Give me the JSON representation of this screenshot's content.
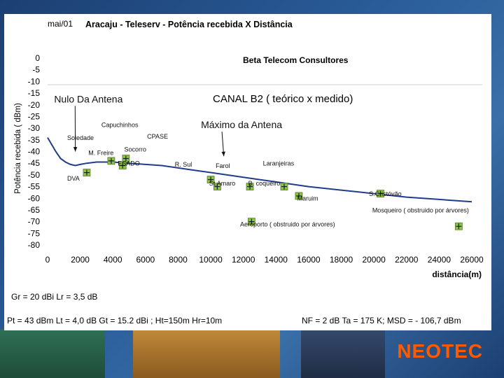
{
  "brand": "NEOTEC",
  "chart_data": {
    "type": "line",
    "date_label": "mai/01",
    "title": "Aracaju - Teleserv - Potência recebida X Distância",
    "subtitle": "Beta Telecom Consultores",
    "channel_label": "CANAL B2 ( teórico x medido)",
    "xlabel": "distância(m)",
    "ylabel": "Potência recebida ( dBm)",
    "xlim": [
      0,
      26000
    ],
    "ylim": [
      -80,
      0
    ],
    "x_ticks": [
      0,
      2000,
      4000,
      6000,
      8000,
      10000,
      12000,
      14000,
      16000,
      18000,
      20000,
      22000,
      24000,
      26000
    ],
    "y_ticks": [
      0,
      -5,
      -10,
      -15,
      -20,
      -25,
      -30,
      -35,
      -40,
      -45,
      -50,
      -55,
      -60,
      -65,
      -70,
      -75,
      -80
    ],
    "series": [
      {
        "name": "",
        "style": "line",
        "color": "#1f3d8a",
        "x": [
          0,
          500,
          800,
          1100,
          1400,
          1700,
          2000,
          2400,
          3000,
          4000,
          5000,
          6000,
          7000,
          8000,
          9000,
          10000,
          11000,
          12000,
          13000,
          14000,
          15000,
          16000,
          18000,
          20000,
          22000,
          24000,
          26000
        ],
        "y": [
          -34,
          -40,
          -43,
          -44.5,
          -45.5,
          -46,
          -45.5,
          -45,
          -44.5,
          -44.5,
          -45,
          -45.5,
          -46,
          -47,
          -48,
          -49,
          -50,
          -51,
          -52,
          -53,
          -54,
          -55,
          -56.5,
          -58,
          -59.5,
          -60.5,
          -61.5
        ]
      },
      {
        "name": "",
        "style": "scatter",
        "color": "#8bc34a",
        "x": [
          2400,
          3900,
          4600,
          4800,
          10000,
          10400,
          12400,
          14500,
          15400,
          20400,
          12500,
          25200
        ],
        "y": [
          -49,
          -44,
          -46,
          -43,
          -52,
          -55,
          -55,
          -55,
          -59,
          -58,
          -70,
          -72
        ]
      }
    ],
    "annotations": [
      {
        "text": "Nulo Da Antena",
        "x": 400,
        "y": -19,
        "size": "large",
        "arrow_to": [
          1700,
          -40
        ]
      },
      {
        "text": "Máximo da Antena",
        "x": 9400,
        "y": -30,
        "size": "large",
        "arrow_to": [
          10800,
          -42
        ]
      },
      {
        "text": "Capuchinhos",
        "x": 3300,
        "y": -29.5
      },
      {
        "text": "Soledade",
        "x": 1200,
        "y": -35
      },
      {
        "text": "CPASE",
        "x": 6100,
        "y": -34.5
      },
      {
        "text": "Socorro",
        "x": 4700,
        "y": -40
      },
      {
        "text": "M. Freire",
        "x": 2500,
        "y": -41.5
      },
      {
        "text": "ESADO",
        "x": 4300,
        "y": -46
      },
      {
        "text": "R. Sul",
        "x": 7800,
        "y": -46.5
      },
      {
        "text": "Farol",
        "x": 10300,
        "y": -47
      },
      {
        "text": "Laranjeiras",
        "x": 13200,
        "y": -46
      },
      {
        "text": "DVA",
        "x": 1200,
        "y": -52.5
      },
      {
        "text": "St.Amaro",
        "x": 9900,
        "y": -54.5
      },
      {
        "text": "B. coqueiro",
        "x": 12300,
        "y": -54.5
      },
      {
        "text": "S.Cristóvão",
        "x": 19700,
        "y": -59
      },
      {
        "text": "Maruim",
        "x": 15300,
        "y": -61
      },
      {
        "text": "Mosqueiro ( obstruido por árvores)",
        "x": 19900,
        "y": -66
      },
      {
        "text": "Aeroporto ( obstruido por árvores)",
        "x": 11800,
        "y": -72
      }
    ]
  },
  "footer": {
    "line1": "Gr = 20 dBi   Lr = 3,5 dB",
    "line2_left": "Pt = 43 dBm  Lt = 4,0 dB  Gt = 15.2 dBi ; Ht=150m  Hr=10m",
    "line2_right": "NF = 2 dB  Ta = 175 K;  MSD = - 106,7 dBm"
  }
}
